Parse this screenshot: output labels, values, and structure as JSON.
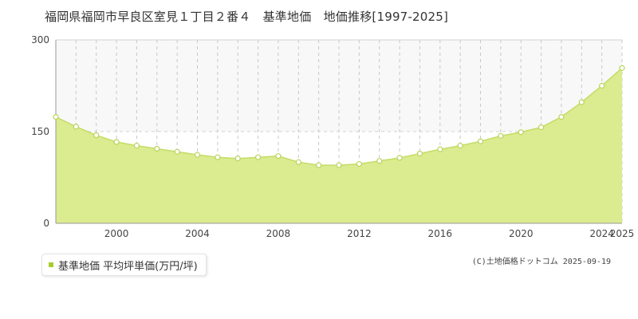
{
  "chart_data": {
    "type": "area",
    "title": "福岡県福岡市早良区室見１丁目２番４　基準地価　地価推移[1997-2025]",
    "x": [
      1997,
      1998,
      1999,
      2000,
      2001,
      2002,
      2003,
      2004,
      2005,
      2006,
      2007,
      2008,
      2009,
      2010,
      2011,
      2012,
      2013,
      2014,
      2015,
      2016,
      2017,
      2018,
      2019,
      2020,
      2021,
      2022,
      2023,
      2024,
      2025
    ],
    "series": [
      {
        "name": "基準地価 平均坪単価(万円/坪)",
        "values": [
          174,
          158,
          144,
          133,
          127,
          122,
          117,
          112,
          108,
          106,
          108,
          110,
          100,
          95,
          95,
          97,
          102,
          107,
          114,
          121,
          127,
          134,
          143,
          149,
          157,
          174,
          198,
          225,
          254
        ]
      }
    ],
    "xlim": [
      1997,
      2025
    ],
    "ylim": [
      0,
      300
    ],
    "x_ticks": [
      2000,
      2004,
      2008,
      2012,
      2016,
      2020,
      2024,
      2025
    ],
    "y_ticks": [
      0,
      150,
      300
    ],
    "grid": true,
    "legend_position": "bottom-left",
    "colors": {
      "fill": "#dbeb8f",
      "line": "#c5dc68",
      "marker_fill": "#ffffff",
      "marker_stroke": "#b9d45a",
      "legend_marker": "#a8cc2f",
      "grid_vertical": "#c8c8c8",
      "grid_horizontal": "#d0d0d0",
      "axis": "#999999"
    }
  },
  "legend": {
    "label": "基準地価 平均坪単価(万円/坪)"
  },
  "footer": {
    "credit": "(C)土地価格ドットコム 2025-09-19"
  }
}
